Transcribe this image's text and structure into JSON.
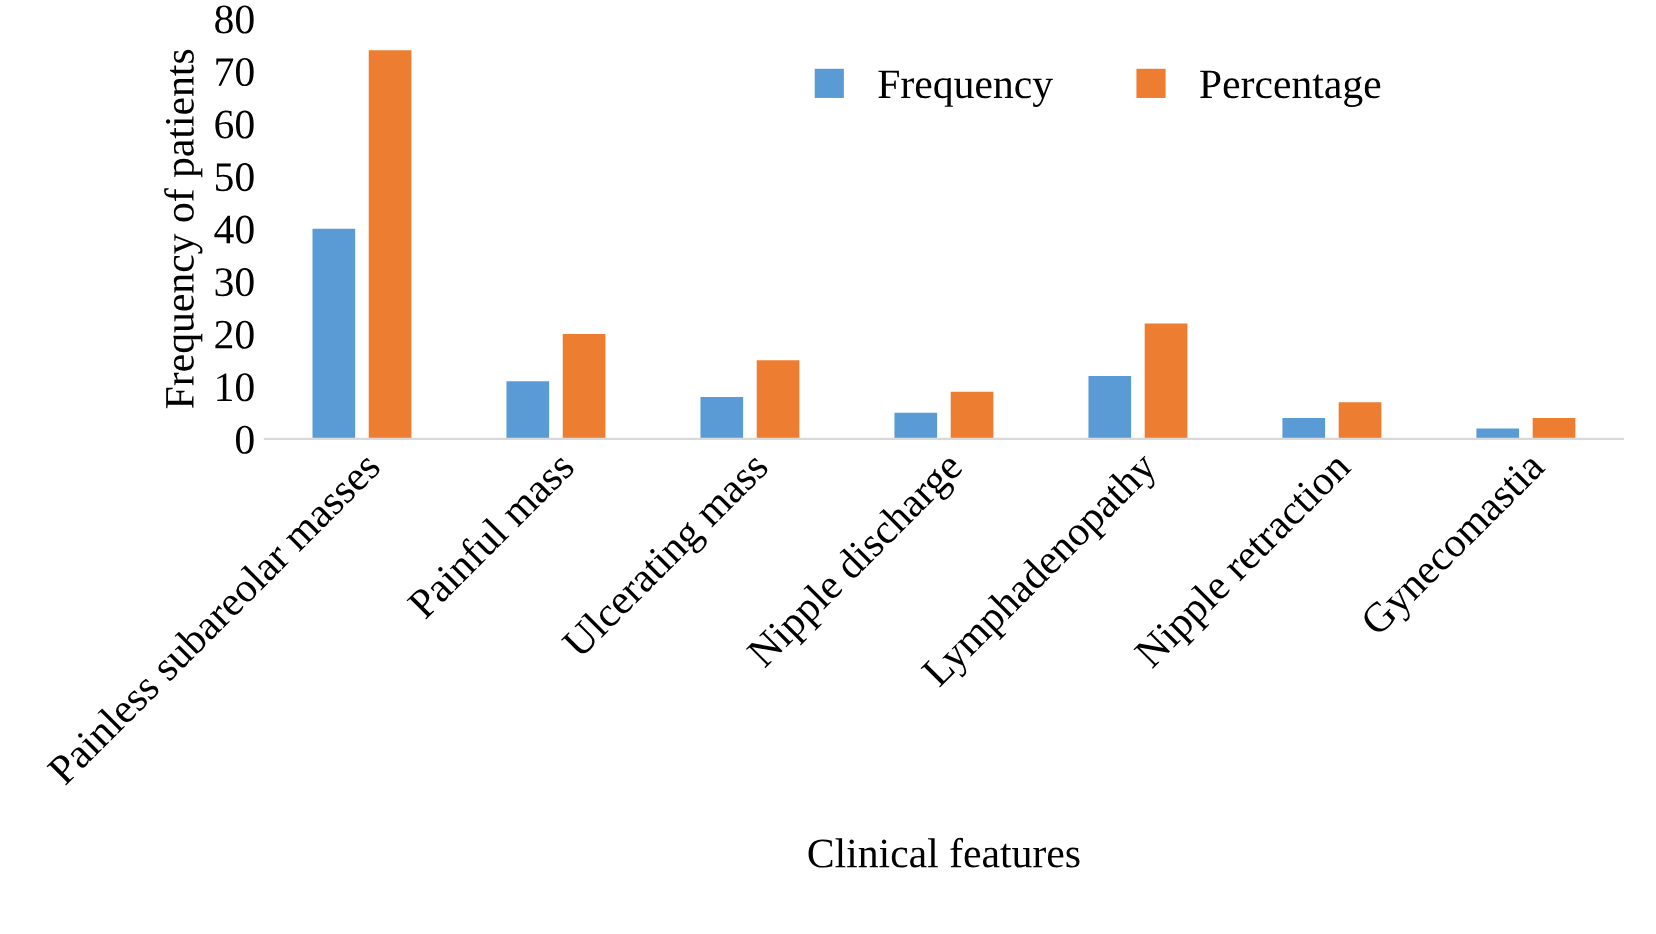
{
  "chart_data": {
    "type": "bar",
    "xlabel": "Clinical features",
    "ylabel": "Frequency of patients",
    "categories": [
      "Painless subareolar masses",
      "Painful mass",
      "Ulcerating mass",
      "Nipple discharge",
      "Lymphadenopathy",
      "Nipple retraction",
      "Gynecomastia"
    ],
    "series": [
      {
        "name": "Frequency",
        "color": "#5b9bd5",
        "values": [
          40,
          11,
          8,
          5,
          12,
          4,
          2
        ]
      },
      {
        "name": "Percentage",
        "color": "#ed7d31",
        "values": [
          74,
          20,
          15,
          9,
          22,
          7,
          4
        ]
      }
    ],
    "ylim": [
      0,
      80
    ],
    "yticks": [
      0,
      10,
      20,
      30,
      40,
      50,
      60,
      70,
      80
    ],
    "grid": false,
    "legend": "top right"
  }
}
